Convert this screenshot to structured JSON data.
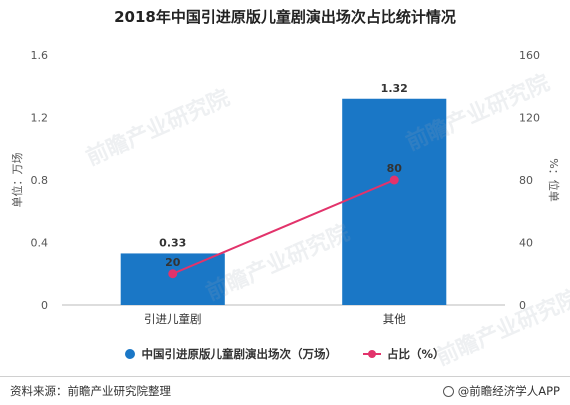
{
  "title": "2018年中国引进原版儿童剧演出场次占比统计情况",
  "chart_data": {
    "type": "bar",
    "title": "2018年中国引进原版儿童剧演出场次占比统计情况",
    "categories": [
      "引进儿童剧",
      "其他"
    ],
    "series": [
      {
        "name": "中国引进原版儿童剧演出场次（万场）",
        "type": "bar",
        "axis": "left",
        "values": [
          0.33,
          1.32
        ],
        "labels": [
          "0.33",
          "1.32"
        ],
        "color": "#1a77c6"
      },
      {
        "name": "占比（%）",
        "type": "line",
        "axis": "right",
        "values": [
          20,
          80
        ],
        "labels": [
          "20",
          "80"
        ],
        "color": "#e2336b"
      }
    ],
    "ylabel": "单位：万场",
    "ylabel_right": "%：位单",
    "ylim": [
      0,
      1.6
    ],
    "yticks": [
      "0",
      "0.4",
      "0.8",
      "1.2",
      "1.6"
    ],
    "ylim_right": [
      0,
      160
    ],
    "yticks_right": [
      "0",
      "40",
      "80",
      "120",
      "160"
    ],
    "grid": false,
    "legend_position": "bottom"
  },
  "legend": {
    "bar_label": "中国引进原版儿童剧演出场次（万场）",
    "line_label": "占比（%）"
  },
  "footer": {
    "source": "资料来源：前瞻产业研究院整理",
    "app": "@前瞻经济学人APP"
  },
  "watermark": {
    "text": "前瞻产业研究院"
  },
  "colors": {
    "bar": "#1a77c6",
    "line": "#e2336b",
    "axis": "#bbbbbb"
  }
}
